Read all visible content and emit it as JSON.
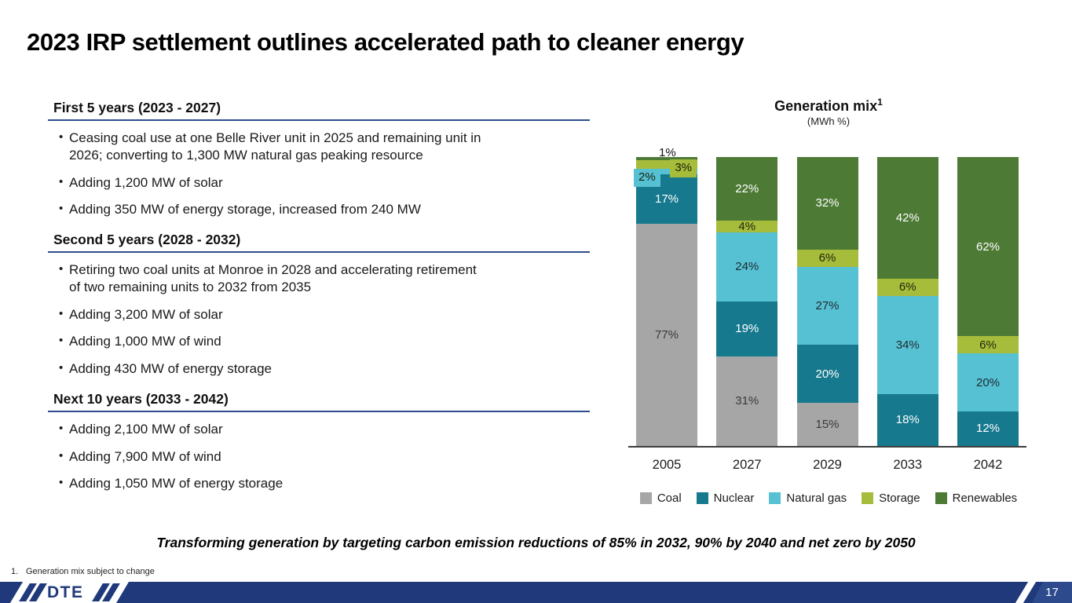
{
  "slide": {
    "title": "2023 IRP settlement outlines accelerated path to cleaner energy",
    "takeaway": "Transforming generation by targeting carbon emission reductions of 85% in 2032, 90% by 2040 and net zero by 2050",
    "footnote_number": "1.",
    "footnote_text": "Generation mix subject to change",
    "page_number": "17",
    "logo_text": "DTE"
  },
  "sections": [
    {
      "heading": "First 5 years (2023 - 2027)",
      "bullets": [
        "Ceasing coal use at one Belle River unit in 2025 and remaining unit in\n2026; converting to 1,300 MW natural gas peaking resource",
        "Adding 1,200 MW of solar",
        "Adding 350 MW of energy storage, increased from 240 MW"
      ]
    },
    {
      "heading": "Second 5 years (2028 - 2032)",
      "bullets": [
        "Retiring two coal units at Monroe in 2028 and accelerating retirement\nof two remaining units to 2032 from 2035",
        "Adding 3,200 MW of solar",
        "Adding 1,000 MW of wind",
        "Adding 430 MW of energy storage"
      ]
    },
    {
      "heading": "Next 10 years (2033 - 2042)",
      "bullets": [
        "Adding 2,100 MW of solar",
        "Adding 7,900 MW of wind",
        "Adding 1,050 MW of energy storage"
      ]
    }
  ],
  "chart_data": {
    "type": "stacked-bar",
    "title": "Generation mix",
    "title_superscript": "1",
    "subtitle": "(MWh %)",
    "unit": "%",
    "categories": [
      "2005",
      "2027",
      "2029",
      "2033",
      "2042"
    ],
    "series": [
      {
        "name": "Coal",
        "color": "#a6a6a6",
        "label_color": "#3a3a3a",
        "values": [
          77,
          31,
          15,
          0,
          0
        ]
      },
      {
        "name": "Nuclear",
        "color": "#16798e",
        "label_color": "#ffffff",
        "values": [
          17,
          19,
          20,
          18,
          12
        ]
      },
      {
        "name": "Natural gas",
        "color": "#57c1d4",
        "label_color": "#1d2b30",
        "values": [
          2,
          24,
          27,
          34,
          20
        ]
      },
      {
        "name": "Storage",
        "color": "#a6bc3b",
        "label_color": "#1e260c",
        "values": [
          3,
          4,
          6,
          6,
          6
        ]
      },
      {
        "name": "Renewables",
        "color": "#4d7a35",
        "label_color": "#ffffff",
        "values": [
          1,
          22,
          32,
          42,
          62
        ]
      }
    ],
    "ylim": [
      0,
      100
    ],
    "grid": false,
    "legend_position": "bottom",
    "min_inline_label": 4,
    "small_label_callouts": [
      {
        "category_index": 0,
        "series": "Renewables",
        "placement": "above"
      },
      {
        "category_index": 0,
        "series": "Storage",
        "placement": "box-right"
      },
      {
        "category_index": 0,
        "series": "Natural gas",
        "placement": "box-left"
      }
    ]
  },
  "colors": {
    "navy": "#20397a",
    "navy_light": "#2c4a8c",
    "rule_navy": "#2d4d8e",
    "axis": "#3d3d3d"
  }
}
